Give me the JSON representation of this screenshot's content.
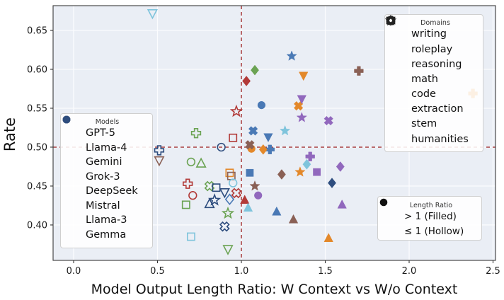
{
  "chart_data": {
    "type": "scatter",
    "title": "",
    "xlabel": "Model Output Length Ratio: W Context vs W/o Context",
    "ylabel": "Rate",
    "xlim": [
      -0.1224,
      2.5148
    ],
    "ylim": [
      0.3545,
      0.6818
    ],
    "xticks": {
      "values": [
        0.0,
        0.5,
        1.0,
        1.5,
        2.0,
        2.5
      ],
      "labels": [
        "0.0",
        "0.5",
        "1.0",
        "1.5",
        "2.0",
        "2.5"
      ]
    },
    "yticks": {
      "values": [
        0.4,
        0.45,
        0.5,
        0.55,
        0.6,
        0.65
      ],
      "labels": [
        "0.40",
        "0.45",
        "0.50",
        "0.55",
        "0.60",
        "0.65"
      ]
    },
    "grid": true,
    "grid_color": "#fbfcfe",
    "plot_bg_color": "#eaeef5",
    "reference_lines": [
      {
        "axis": "x",
        "value": 1.0,
        "color": "#9b1c1c",
        "style": "dashed"
      },
      {
        "axis": "y",
        "value": 0.5,
        "color": "#9b1c1c",
        "style": "dashed"
      }
    ],
    "legends": {
      "models_title": "Models",
      "domains_title": "Domains",
      "ratio_title": "Length Ratio",
      "ratio_items": [
        {
          "label": "> 1 (Filled)",
          "filled": true
        },
        {
          "label": "≤ 1 (Hollow)",
          "filled": false
        }
      ]
    },
    "models": [
      {
        "name": "GPT-5",
        "color": "#4a79b5"
      },
      {
        "name": "Llama-4",
        "color": "#b23a38"
      },
      {
        "name": "Gemini",
        "color": "#6ba353"
      },
      {
        "name": "Grok-3",
        "color": "#e3882a"
      },
      {
        "name": "DeepSeek",
        "color": "#8a6055"
      },
      {
        "name": "Mistral",
        "color": "#9168bd"
      },
      {
        "name": "Llama-3",
        "color": "#7fc4dc"
      },
      {
        "name": "Gemma",
        "color": "#2e4d7e"
      }
    ],
    "domains": [
      {
        "name": "writing",
        "marker": "square"
      },
      {
        "name": "roleplay",
        "marker": "triangle_up"
      },
      {
        "name": "reasoning",
        "marker": "triangle_down"
      },
      {
        "name": "math",
        "marker": "plus"
      },
      {
        "name": "code",
        "marker": "circle"
      },
      {
        "name": "extraction",
        "marker": "diamond"
      },
      {
        "name": "stem",
        "marker": "x"
      },
      {
        "name": "humanities",
        "marker": "star"
      }
    ],
    "points": [
      {
        "model": "GPT-5",
        "domain": "humanities",
        "x": 1.3,
        "y": 0.617,
        "filled": true
      },
      {
        "model": "GPT-5",
        "domain": "code",
        "x": 1.12,
        "y": 0.554,
        "filled": true
      },
      {
        "model": "GPT-5",
        "domain": "stem",
        "x": 1.07,
        "y": 0.521,
        "filled": true
      },
      {
        "model": "GPT-5",
        "domain": "reasoning",
        "x": 1.16,
        "y": 0.513,
        "filled": true
      },
      {
        "model": "GPT-5",
        "domain": "math",
        "x": 1.17,
        "y": 0.497,
        "filled": true
      },
      {
        "model": "GPT-5",
        "domain": "writing",
        "x": 1.05,
        "y": 0.467,
        "filled": true
      },
      {
        "model": "GPT-5",
        "domain": "extraction",
        "x": 0.93,
        "y": 0.433,
        "filled": false
      },
      {
        "model": "GPT-5",
        "domain": "roleplay",
        "x": 1.21,
        "y": 0.417,
        "filled": true
      },
      {
        "model": "Llama-4",
        "domain": "extraction",
        "x": 1.03,
        "y": 0.585,
        "filled": true
      },
      {
        "model": "Llama-4",
        "domain": "humanities",
        "x": 0.97,
        "y": 0.546,
        "filled": false
      },
      {
        "model": "Llama-4",
        "domain": "writing",
        "x": 0.95,
        "y": 0.512,
        "filled": false
      },
      {
        "model": "Llama-4",
        "domain": "math",
        "x": 0.68,
        "y": 0.453,
        "filled": false
      },
      {
        "model": "Llama-4",
        "domain": "stem",
        "x": 0.97,
        "y": 0.441,
        "filled": false
      },
      {
        "model": "Llama-4",
        "domain": "code",
        "x": 0.71,
        "y": 0.438,
        "filled": false
      },
      {
        "model": "Llama-4",
        "domain": "roleplay",
        "x": 1.02,
        "y": 0.432,
        "filled": true
      },
      {
        "model": "Gemini",
        "domain": "extraction",
        "x": 1.08,
        "y": 0.599,
        "filled": true
      },
      {
        "model": "Gemini",
        "domain": "math",
        "x": 0.73,
        "y": 0.518,
        "filled": false
      },
      {
        "model": "Gemini",
        "domain": "code",
        "x": 0.7,
        "y": 0.481,
        "filled": false
      },
      {
        "model": "Gemini",
        "domain": "roleplay",
        "x": 0.76,
        "y": 0.479,
        "filled": false
      },
      {
        "model": "Gemini",
        "domain": "stem",
        "x": 0.81,
        "y": 0.45,
        "filled": false
      },
      {
        "model": "Gemini",
        "domain": "writing",
        "x": 0.67,
        "y": 0.426,
        "filled": false
      },
      {
        "model": "Gemini",
        "domain": "humanities",
        "x": 0.92,
        "y": 0.415,
        "filled": false
      },
      {
        "model": "Gemini",
        "domain": "reasoning",
        "x": 0.92,
        "y": 0.369,
        "filled": false
      },
      {
        "model": "Grok-3",
        "domain": "reasoning",
        "x": 1.37,
        "y": 0.592,
        "filled": true
      },
      {
        "model": "Grok-3",
        "domain": "math",
        "x": 2.38,
        "y": 0.569,
        "filled": true
      },
      {
        "model": "Grok-3",
        "domain": "stem",
        "x": 1.34,
        "y": 0.553,
        "filled": true
      },
      {
        "model": "Grok-3",
        "domain": "code",
        "x": 1.06,
        "y": 0.498,
        "filled": true
      },
      {
        "model": "Grok-3",
        "domain": "extraction",
        "x": 1.13,
        "y": 0.497,
        "filled": true
      },
      {
        "model": "Grok-3",
        "domain": "humanities",
        "x": 1.35,
        "y": 0.468,
        "filled": true
      },
      {
        "model": "Grok-3",
        "domain": "writing",
        "x": 0.93,
        "y": 0.467,
        "filled": false
      },
      {
        "model": "Grok-3",
        "domain": "roleplay",
        "x": 1.52,
        "y": 0.383,
        "filled": true
      },
      {
        "model": "DeepSeek",
        "domain": "math",
        "x": 1.7,
        "y": 0.598,
        "filled": true
      },
      {
        "model": "DeepSeek",
        "domain": "stem",
        "x": 1.05,
        "y": 0.503,
        "filled": true
      },
      {
        "model": "DeepSeek",
        "domain": "reasoning",
        "x": 0.51,
        "y": 0.483,
        "filled": false
      },
      {
        "model": "DeepSeek",
        "domain": "extraction",
        "x": 1.24,
        "y": 0.465,
        "filled": true
      },
      {
        "model": "DeepSeek",
        "domain": "writing",
        "x": 0.94,
        "y": 0.463,
        "filled": false
      },
      {
        "model": "DeepSeek",
        "domain": "humanities",
        "x": 1.08,
        "y": 0.45,
        "filled": true
      },
      {
        "model": "DeepSeek",
        "domain": "roleplay",
        "x": 1.31,
        "y": 0.407,
        "filled": true
      },
      {
        "model": "Mistral",
        "domain": "reasoning",
        "x": 1.36,
        "y": 0.562,
        "filled": true
      },
      {
        "model": "Mistral",
        "domain": "humanities",
        "x": 1.36,
        "y": 0.538,
        "filled": true
      },
      {
        "model": "Mistral",
        "domain": "stem",
        "x": 1.52,
        "y": 0.534,
        "filled": true
      },
      {
        "model": "Mistral",
        "domain": "math",
        "x": 1.41,
        "y": 0.488,
        "filled": true
      },
      {
        "model": "Mistral",
        "domain": "extraction",
        "x": 1.59,
        "y": 0.475,
        "filled": true
      },
      {
        "model": "Mistral",
        "domain": "writing",
        "x": 1.45,
        "y": 0.468,
        "filled": true
      },
      {
        "model": "Mistral",
        "domain": "code",
        "x": 1.1,
        "y": 0.438,
        "filled": true
      },
      {
        "model": "Mistral",
        "domain": "roleplay",
        "x": 1.6,
        "y": 0.426,
        "filled": true
      },
      {
        "model": "Llama-3",
        "domain": "reasoning",
        "x": 0.47,
        "y": 0.672,
        "filled": false
      },
      {
        "model": "Llama-3",
        "domain": "humanities",
        "x": 1.26,
        "y": 0.521,
        "filled": true
      },
      {
        "model": "Llama-3",
        "domain": "extraction",
        "x": 1.39,
        "y": 0.478,
        "filled": true
      },
      {
        "model": "Llama-3",
        "domain": "code",
        "x": 0.95,
        "y": 0.454,
        "filled": false
      },
      {
        "model": "Llama-3",
        "domain": "roleplay",
        "x": 1.04,
        "y": 0.422,
        "filled": true
      },
      {
        "model": "Llama-3",
        "domain": "writing",
        "x": 0.7,
        "y": 0.385,
        "filled": false
      },
      {
        "model": "Gemma",
        "domain": "math",
        "x": 0.51,
        "y": 0.496,
        "filled": false
      },
      {
        "model": "Gemma",
        "domain": "code",
        "x": 0.88,
        "y": 0.5,
        "filled": false
      },
      {
        "model": "Gemma",
        "domain": "writing",
        "x": 0.85,
        "y": 0.448,
        "filled": false
      },
      {
        "model": "Gemma",
        "domain": "reasoning",
        "x": 0.9,
        "y": 0.442,
        "filled": false
      },
      {
        "model": "Gemma",
        "domain": "humanities",
        "x": 0.84,
        "y": 0.432,
        "filled": false
      },
      {
        "model": "Gemma",
        "domain": "roleplay",
        "x": 0.81,
        "y": 0.427,
        "filled": false
      },
      {
        "model": "Gemma",
        "domain": "stem",
        "x": 0.9,
        "y": 0.398,
        "filled": false
      },
      {
        "model": "Gemma",
        "domain": "extraction",
        "x": 1.54,
        "y": 0.454,
        "filled": true
      }
    ]
  }
}
